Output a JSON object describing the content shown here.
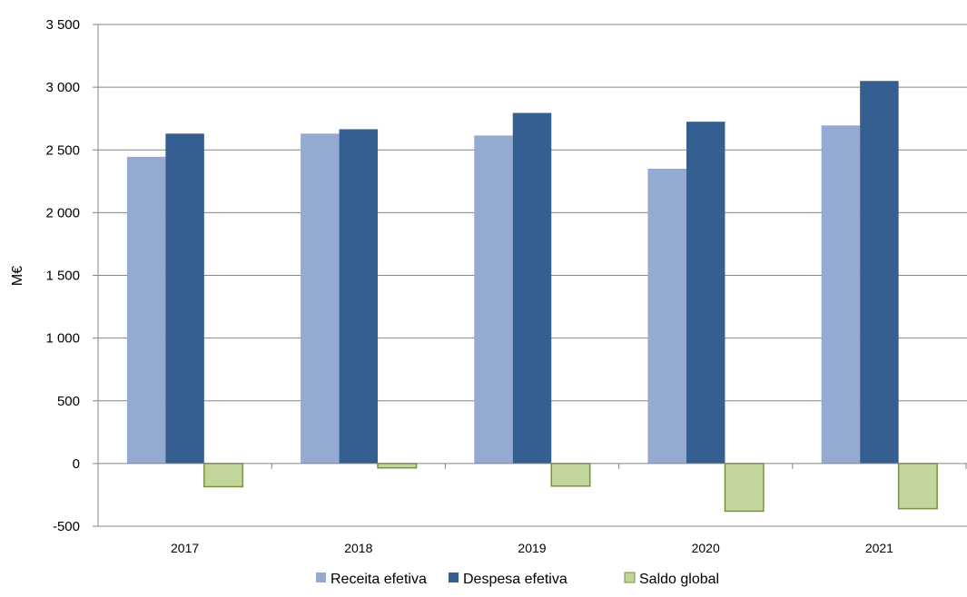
{
  "chart_data": {
    "type": "bar",
    "title": "",
    "xlabel": "",
    "ylabel": "M€",
    "ylim": [
      -500,
      3500
    ],
    "yticks": [
      -500,
      0,
      500,
      1000,
      1500,
      2000,
      2500,
      3000,
      3500
    ],
    "ytick_labels": [
      "-500",
      "0",
      "500",
      "1 000",
      "1 500",
      "2 000",
      "2 500",
      "3 000",
      "3 500"
    ],
    "categories": [
      "2017",
      "2018",
      "2019",
      "2020",
      "2021"
    ],
    "grid": true,
    "legend_position": "bottom",
    "series": [
      {
        "name": "Receita efetiva",
        "color": "#95aad2",
        "values": [
          2445,
          2630,
          2615,
          2350,
          2695
        ]
      },
      {
        "name": "Despesa efetiva",
        "color": "#365f91",
        "values": [
          2630,
          2665,
          2795,
          2725,
          3050
        ]
      },
      {
        "name": "Saldo global",
        "color": "#c2d69b",
        "stroke": "#77933c",
        "values": [
          -185,
          -35,
          -180,
          -380,
          -360
        ]
      }
    ]
  }
}
